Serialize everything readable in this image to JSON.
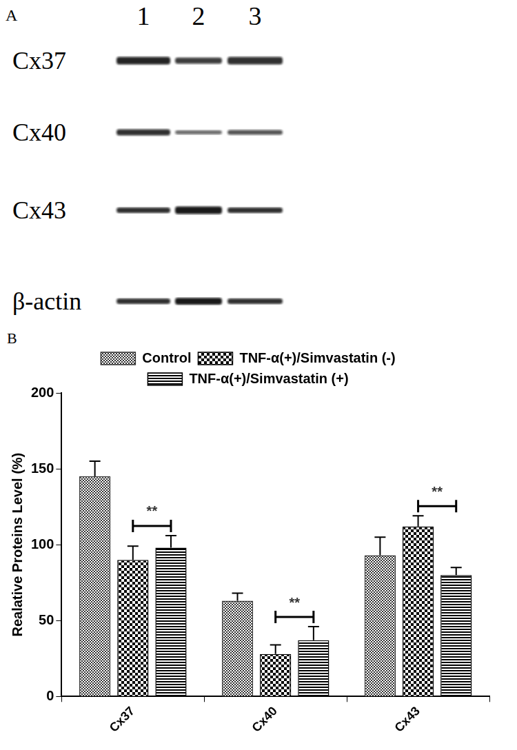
{
  "chart_data": {
    "type": "bar",
    "categories": [
      "Cx37",
      "Cx40",
      "Cx43"
    ],
    "y_label": "Realative Proteins Level (%)",
    "series": [
      {
        "name": "Control",
        "color": "#333333",
        "values": [
          145,
          63,
          93
        ],
        "errors": [
          10,
          5,
          12
        ]
      },
      {
        "name": "TNF-α(+)/Simvastatin (-)",
        "color": "#000000",
        "values": [
          90,
          28,
          112
        ],
        "errors": [
          9,
          6,
          7
        ]
      },
      {
        "name": "TNF-α(+)/Simvastatin (+)",
        "color": "#000000",
        "values": [
          98,
          37,
          80
        ],
        "errors": [
          8,
          9,
          5
        ]
      }
    ],
    "ylim": [
      0,
      200
    ],
    "yticks": [
      0,
      50,
      100,
      150,
      200
    ],
    "grid": false,
    "legend": "top",
    "annotations": [
      {
        "text": "**",
        "category": "Cx37",
        "between": [
          "TNF-α(+)/Simvastatin (-)",
          "TNF-α(+)/Simvastatin (+)"
        ]
      },
      {
        "text": "**",
        "category": "Cx40",
        "between": [
          "TNF-α(+)/Simvastatin (-)",
          "TNF-α(+)/Simvastatin (+)"
        ]
      },
      {
        "text": "**",
        "category": "Cx43",
        "between": [
          "TNF-α(+)/Simvastatin (-)",
          "TNF-α(+)/Simvastatin (+)"
        ]
      }
    ]
  },
  "blot": {
    "panel_label": "A",
    "lanes": [
      "1",
      "2",
      "3"
    ],
    "rows": [
      "Cx37",
      "Cx40",
      "Cx43",
      "β-actin"
    ]
  },
  "chart_panel_label": "B"
}
